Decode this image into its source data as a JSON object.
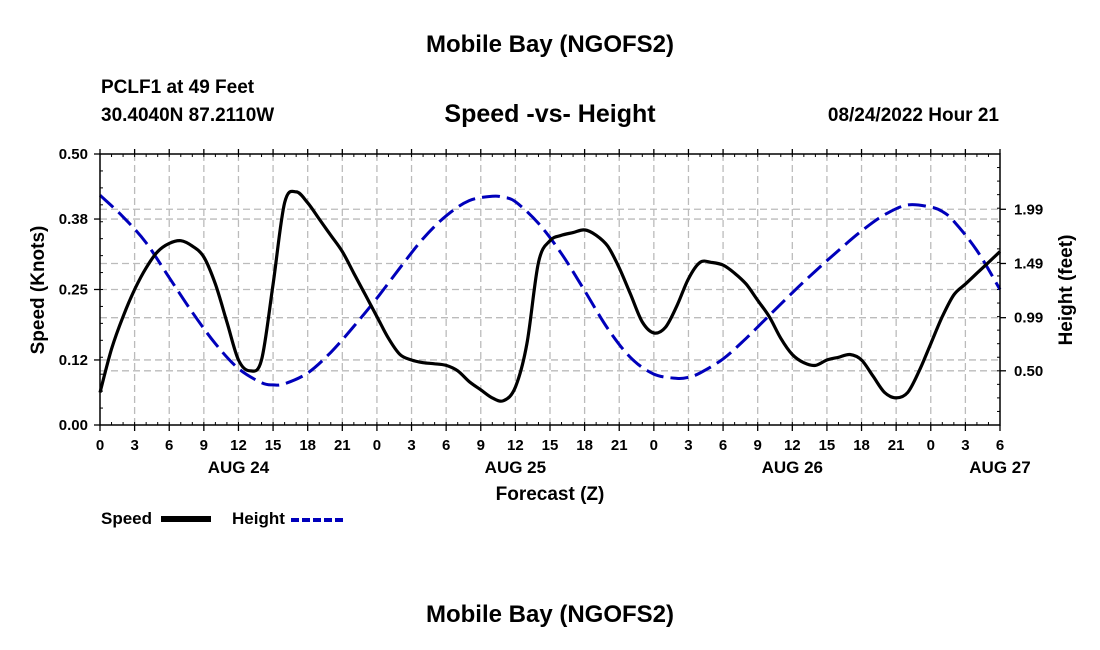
{
  "header": {
    "title": "Mobile Bay (NGOFS2)",
    "station": "PCLF1 at 49 Feet",
    "coords": "30.4040N  87.2110W",
    "subtitle": "Speed -vs- Height",
    "timestamp": "08/24/2022 Hour 21"
  },
  "footer_title": "Mobile Bay (NGOFS2)",
  "legend": {
    "speed_label": "Speed",
    "height_label": "Height"
  },
  "colors": {
    "speed": "#000000",
    "height": "#0000bb",
    "grid": "#bbbbbb"
  },
  "chart_data": {
    "type": "line",
    "title": "Speed -vs- Height",
    "xlabel": "Forecast (Z)",
    "ylabel": "Speed (Knots)",
    "y2label": "Height (feet)",
    "x_unit": "hours from Aug 24 00Z",
    "xlim": [
      0,
      78
    ],
    "ylim": [
      0,
      0.5
    ],
    "y2lim": [
      0.0,
      2.5
    ],
    "x_tick_step": 3,
    "yticks": [
      "0.00",
      "0.12",
      "0.25",
      "0.38",
      "0.50"
    ],
    "y2ticks": [
      "0.50",
      "0.99",
      "1.49",
      "1.99"
    ],
    "date_labels": [
      {
        "hour": 12,
        "label": "AUG 24"
      },
      {
        "hour": 36,
        "label": "AUG 25"
      },
      {
        "hour": 60,
        "label": "AUG 26"
      },
      {
        "hour": 78,
        "label": "AUG 27"
      }
    ],
    "series": [
      {
        "name": "Speed",
        "axis": "left",
        "x": [
          0,
          1,
          2,
          3,
          4,
          5,
          6,
          7,
          8,
          9,
          10,
          11,
          12,
          13,
          14,
          15,
          16,
          17,
          18,
          19,
          20,
          21,
          22,
          23,
          24,
          25,
          26,
          27,
          28,
          29,
          30,
          31,
          32,
          33,
          34,
          35,
          36,
          37,
          38,
          39,
          40,
          41,
          42,
          43,
          44,
          45,
          46,
          47,
          48,
          49,
          50,
          51,
          52,
          53,
          54,
          55,
          56,
          57,
          58,
          59,
          60,
          61,
          62,
          63,
          64,
          65,
          66,
          67,
          68,
          69,
          70,
          71,
          72,
          73,
          74,
          75,
          76,
          77,
          78
        ],
        "values": [
          0.06,
          0.14,
          0.2,
          0.25,
          0.29,
          0.32,
          0.335,
          0.34,
          0.33,
          0.31,
          0.26,
          0.19,
          0.12,
          0.1,
          0.12,
          0.26,
          0.41,
          0.43,
          0.41,
          0.38,
          0.35,
          0.32,
          0.28,
          0.24,
          0.2,
          0.16,
          0.13,
          0.12,
          0.115,
          0.113,
          0.11,
          0.1,
          0.08,
          0.065,
          0.05,
          0.045,
          0.07,
          0.15,
          0.3,
          0.34,
          0.35,
          0.355,
          0.36,
          0.35,
          0.33,
          0.29,
          0.24,
          0.19,
          0.17,
          0.18,
          0.22,
          0.27,
          0.3,
          0.3,
          0.295,
          0.28,
          0.26,
          0.23,
          0.2,
          0.16,
          0.13,
          0.115,
          0.11,
          0.12,
          0.125,
          0.13,
          0.12,
          0.09,
          0.06,
          0.05,
          0.06,
          0.1,
          0.15,
          0.2,
          0.24,
          0.26,
          0.28,
          0.3,
          0.32
        ]
      },
      {
        "name": "Height",
        "axis": "right",
        "x": [
          0,
          2,
          4,
          6,
          8,
          10,
          12,
          14,
          15,
          16,
          18,
          20,
          22,
          24,
          26,
          28,
          30,
          32,
          34,
          35,
          36,
          38,
          40,
          42,
          44,
          46,
          48,
          50,
          51,
          52,
          54,
          56,
          58,
          60,
          62,
          64,
          66,
          68,
          70,
          72,
          73,
          74,
          76,
          78
        ],
        "values": [
          2.12,
          1.92,
          1.68,
          1.36,
          1.04,
          0.75,
          0.52,
          0.39,
          0.37,
          0.38,
          0.48,
          0.67,
          0.91,
          1.17,
          1.45,
          1.72,
          1.93,
          2.07,
          2.11,
          2.1,
          2.06,
          1.86,
          1.58,
          1.24,
          0.89,
          0.62,
          0.47,
          0.43,
          0.44,
          0.48,
          0.61,
          0.8,
          1.01,
          1.22,
          1.42,
          1.61,
          1.79,
          1.94,
          2.03,
          2.01,
          1.97,
          1.88,
          1.61,
          1.25
        ]
      }
    ]
  }
}
